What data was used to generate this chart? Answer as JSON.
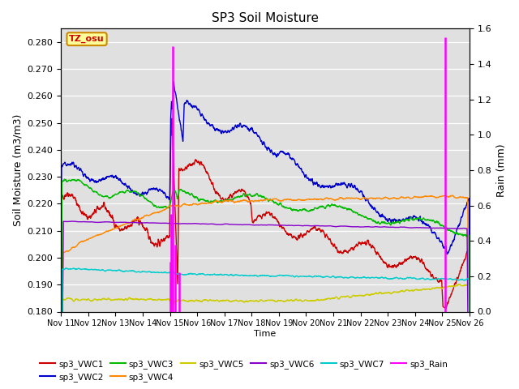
{
  "title": "SP3 Soil Moisture",
  "xlabel": "Time",
  "ylabel_left": "Soil Moisture (m3/m3)",
  "ylabel_right": "Rain (mm)",
  "ylim_left": [
    0.18,
    0.285
  ],
  "ylim_right": [
    0.0,
    1.6
  ],
  "bg_color": "#e0e0e0",
  "label_box": "TZ_osu",
  "label_box_color": "#ffff99",
  "label_box_border": "#cc8800",
  "xtick_labels": [
    "Nov 11",
    "Nov 12",
    "Nov 13",
    "Nov 14",
    "Nov 15",
    "Nov 16",
    "Nov 17",
    "Nov 18",
    "Nov 19",
    "Nov 20",
    "Nov 21",
    "Nov 22",
    "Nov 23",
    "Nov 24",
    "Nov 25",
    "Nov 26"
  ],
  "colors": {
    "VWC1": "#cc0000",
    "VWC2": "#0000cc",
    "VWC3": "#00bb00",
    "VWC4": "#ff8800",
    "VWC5": "#cccc00",
    "VWC6": "#8800cc",
    "VWC7": "#00cccc",
    "Rain": "#ff00ff"
  },
  "rain_times": [
    4.0,
    4.05,
    4.1,
    4.18,
    4.35,
    14.1
  ],
  "rain_amounts": [
    0.28,
    0.55,
    1.5,
    0.38,
    0.22,
    1.55
  ]
}
